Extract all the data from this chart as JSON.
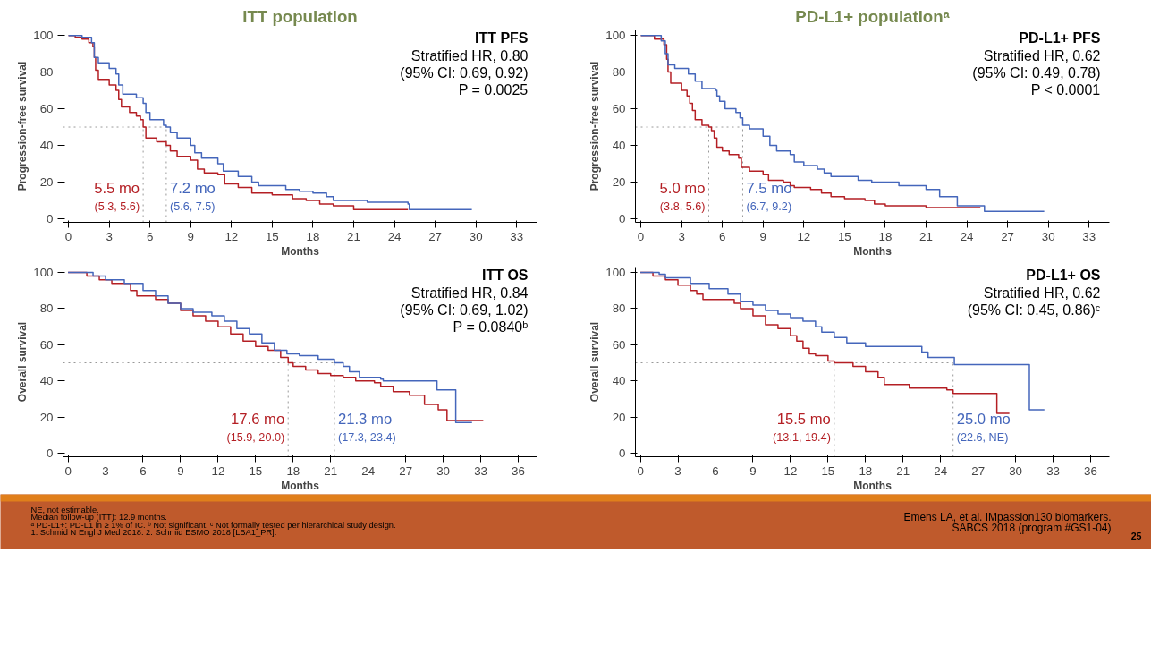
{
  "chart_data": [
    {
      "type": "step",
      "title": "ITT population",
      "subtitle": "ITT PFS",
      "xlabel": "Months",
      "ylabel": "Progression-free survival",
      "xlim": [
        -0.4,
        34.5
      ],
      "ylim": [
        -2,
        103
      ],
      "xticks": [
        0,
        3,
        6,
        9,
        12,
        15,
        18,
        21,
        24,
        27,
        30,
        33
      ],
      "yticks": [
        0,
        20,
        40,
        60,
        80,
        100
      ],
      "series": [
        {
          "color": "#b41f24",
          "x": [
            0,
            0.5,
            1,
            1.5,
            1.8,
            1.9,
            2,
            2.2,
            3,
            3.5,
            3.7,
            3.9,
            4.5,
            5,
            5.3,
            5.5,
            5.7,
            6.5,
            7.2,
            7.5,
            8,
            9,
            9.5,
            10,
            11,
            11.5,
            12.5,
            13.5,
            15,
            16.5,
            17.5,
            18.5,
            19.5,
            21,
            25
          ],
          "values": [
            100,
            99,
            98,
            96,
            94,
            88,
            81,
            76,
            73,
            70,
            65,
            61,
            58,
            56,
            54,
            50,
            44,
            42,
            40,
            37,
            34,
            32,
            27,
            25,
            24,
            19,
            17,
            14,
            13,
            11,
            10,
            8,
            7,
            5,
            5
          ]
        },
        {
          "color": "#4466bb",
          "x": [
            0,
            1,
            1.7,
            1.9,
            2.2,
            3,
            3.5,
            3.7,
            4,
            5,
            5.5,
            5.7,
            6,
            7,
            7.2,
            7.5,
            8,
            9,
            9.3,
            9.8,
            11,
            11.4,
            12.5,
            13.5,
            14,
            16,
            17,
            18,
            19,
            19.5,
            21,
            22,
            25,
            25.1,
            29.7
          ],
          "values": [
            100,
            99,
            96,
            88,
            85,
            82,
            79,
            73,
            68,
            66,
            63,
            58,
            54,
            51,
            50,
            47,
            44,
            40,
            36,
            33,
            30,
            26,
            23,
            20,
            18,
            16,
            15,
            14,
            12,
            10,
            10,
            9,
            8,
            5,
            5
          ]
        }
      ],
      "ref_lines": [
        {
          "axis": "y",
          "value": 50,
          "line_style": "dotted"
        },
        {
          "axis": "x",
          "value": 5.5,
          "line_style": "dotted"
        },
        {
          "axis": "x",
          "value": 7.2,
          "line_style": "dotted"
        }
      ],
      "annotations": [
        "Stratified HR, 0.80",
        "(95% CI: 0.69, 0.92)",
        "P = 0.0025",
        {
          "text": "5.5 mo",
          "x": 5.5,
          "y": 12
        },
        {
          "text": "(5.3, 5.6)",
          "x": 5.5,
          "y": 3
        },
        {
          "text": "7.2 mo",
          "x": 7.2,
          "y": 12
        },
        {
          "text": "(5.6, 7.5)",
          "x": 7.2,
          "y": 3
        }
      ]
    },
    {
      "type": "step",
      "title": "PD-L1+ populationᵃ",
      "subtitle": "PD-L1+ PFS",
      "xlabel": "Months",
      "ylabel": "Progression-free survival",
      "xlim": [
        -0.4,
        34.5
      ],
      "ylim": [
        -2,
        103
      ],
      "xticks": [
        0,
        3,
        6,
        9,
        12,
        15,
        18,
        21,
        24,
        27,
        30,
        33
      ],
      "yticks": [
        0,
        20,
        40,
        60,
        80,
        100
      ],
      "series": [
        {
          "color": "#b41f24",
          "x": [
            0,
            1,
            1.7,
            1.9,
            2,
            2.2,
            3,
            3.4,
            3.6,
            3.8,
            4,
            4.5,
            5,
            5.2,
            5.4,
            5.6,
            6,
            6.5,
            7.2,
            7.4,
            8,
            9,
            9.4,
            10.5,
            11,
            11.3,
            12.5,
            13.3,
            14,
            15,
            16.5,
            17.2,
            18,
            21,
            25
          ],
          "values": [
            100,
            98,
            95,
            87,
            80,
            74,
            70,
            67,
            63,
            59,
            54,
            51,
            50,
            48,
            44,
            39,
            37,
            35,
            33,
            28,
            26,
            24,
            21,
            20,
            18,
            17,
            16,
            14,
            12,
            11,
            10,
            8,
            7,
            6,
            6
          ]
        },
        {
          "color": "#4466bb",
          "x": [
            0,
            1.5,
            1.8,
            2,
            2.5,
            3.5,
            4,
            4.5,
            5.5,
            5.6,
            5.8,
            6.2,
            7,
            7.3,
            7.5,
            8,
            9,
            9.5,
            10,
            11,
            11.3,
            12,
            13,
            13.5,
            14,
            16,
            17,
            19,
            21,
            22,
            23.3,
            25.3,
            29.7
          ],
          "values": [
            100,
            97,
            90,
            84,
            82,
            79,
            75,
            71,
            70,
            67,
            64,
            60,
            58,
            55,
            51,
            49,
            45,
            40,
            37,
            35,
            31,
            29,
            27,
            25,
            23,
            21,
            20,
            18,
            16,
            12,
            7,
            4,
            4
          ]
        }
      ],
      "ref_lines": [
        {
          "axis": "y",
          "value": 50,
          "line_style": "dotted"
        },
        {
          "axis": "x",
          "value": 5.0,
          "line_style": "dotted"
        },
        {
          "axis": "x",
          "value": 7.5,
          "line_style": "dotted"
        }
      ],
      "annotations": [
        "Stratified HR, 0.62",
        "(95% CI: 0.49, 0.78)",
        "P < 0.0001",
        {
          "text": "5.0 mo",
          "x": 5.0,
          "y": 12
        },
        {
          "text": "(3.8, 5.6)",
          "x": 5.0,
          "y": 3
        },
        {
          "text": "7.5 mo",
          "x": 7.5,
          "y": 12
        },
        {
          "text": "(6.7, 9.2)",
          "x": 7.5,
          "y": 3
        }
      ]
    },
    {
      "type": "step",
      "subtitle": "ITT OS",
      "xlabel": "Months",
      "ylabel": "Overall survival",
      "xlim": [
        -0.4,
        37.5
      ],
      "ylim": [
        -2,
        103
      ],
      "xticks": [
        0,
        3,
        6,
        9,
        12,
        15,
        18,
        21,
        24,
        27,
        30,
        33,
        36
      ],
      "yticks": [
        0,
        20,
        40,
        60,
        80,
        100
      ],
      "series": [
        {
          "color": "#b41f24",
          "x": [
            0,
            1.5,
            2.5,
            3.5,
            5,
            5.5,
            7,
            8,
            9,
            10,
            11,
            12,
            13,
            14,
            15,
            16,
            17,
            17.6,
            18,
            19,
            20,
            21,
            22,
            23,
            24.5,
            25,
            26,
            27.3,
            28.5,
            29.6,
            30.3,
            33.2
          ],
          "values": [
            100,
            98,
            96,
            94,
            90,
            87,
            85,
            83,
            79,
            76,
            73,
            70,
            66,
            62,
            59,
            57,
            53,
            50,
            48,
            46,
            44,
            43,
            42,
            40,
            39,
            37,
            34,
            32,
            27,
            24,
            18,
            18
          ]
        },
        {
          "color": "#4466bb",
          "x": [
            0,
            2,
            3,
            4.5,
            6,
            7,
            8,
            9,
            10,
            11.5,
            12.5,
            13.5,
            14.5,
            15.5,
            16.5,
            17.5,
            18.5,
            20,
            21.3,
            22,
            22.5,
            23.3,
            25,
            25.2,
            29.5,
            31,
            32.3
          ],
          "values": [
            100,
            98,
            96,
            94,
            90,
            87,
            83,
            80,
            78,
            76,
            73,
            69,
            66,
            61,
            57,
            55,
            54,
            52,
            50,
            48,
            45,
            42,
            41,
            40,
            35,
            17,
            17
          ]
        }
      ],
      "ref_lines": [
        {
          "axis": "y",
          "value": 50,
          "line_style": "dotted"
        },
        {
          "axis": "x",
          "value": 17.6,
          "line_style": "dotted"
        },
        {
          "axis": "x",
          "value": 21.3,
          "line_style": "dotted"
        }
      ],
      "annotations": [
        "Stratified HR, 0.84",
        "(95% CI: 0.69, 1.02)",
        "P = 0.0840ᵇ",
        {
          "text": "17.6 mo",
          "x": 17.6,
          "y": 14
        },
        {
          "text": "(15.9, 20.0)",
          "x": 17.6,
          "y": 5
        },
        {
          "text": "21.3 mo",
          "x": 21.3,
          "y": 14
        },
        {
          "text": "(17.3, 23.4)",
          "x": 21.3,
          "y": 5
        }
      ]
    },
    {
      "type": "step",
      "subtitle": "PD-L1+ OS",
      "xlabel": "Months",
      "ylabel": "Overall survival",
      "xlim": [
        -0.4,
        37.5
      ],
      "ylim": [
        -2,
        103
      ],
      "xticks": [
        0,
        3,
        6,
        9,
        12,
        15,
        18,
        21,
        24,
        27,
        30,
        33,
        36
      ],
      "yticks": [
        0,
        20,
        40,
        60,
        80,
        100
      ],
      "series": [
        {
          "color": "#b41f24",
          "x": [
            0,
            1,
            2,
            3,
            4,
            4.5,
            5,
            7.5,
            8,
            9,
            10,
            11,
            12,
            12.5,
            13,
            13.5,
            14,
            15,
            15.5,
            17,
            18,
            19,
            19.5,
            21.5,
            24.5,
            25,
            28.5,
            29.5
          ],
          "values": [
            100,
            98,
            96,
            93,
            90,
            88,
            85,
            83,
            80,
            76,
            71,
            69,
            65,
            62,
            58,
            55,
            54,
            51,
            50,
            48,
            45,
            42,
            38,
            36,
            35,
            33,
            22,
            22
          ]
        },
        {
          "color": "#4466bb",
          "x": [
            0,
            1.5,
            2,
            4,
            5.5,
            7,
            8,
            9,
            10,
            11,
            12,
            13,
            14,
            14.5,
            15.5,
            16.5,
            18,
            22.5,
            23,
            25.1,
            31.1,
            32.3
          ],
          "values": [
            100,
            99,
            97,
            94,
            91,
            88,
            84,
            82,
            79,
            77,
            75,
            73,
            70,
            67,
            64,
            61,
            59,
            56,
            53,
            49,
            24,
            24
          ]
        }
      ],
      "ref_lines": [
        {
          "axis": "y",
          "value": 50,
          "line_style": "dotted"
        },
        {
          "axis": "x",
          "value": 15.5,
          "line_style": "dotted"
        },
        {
          "axis": "x",
          "value": 25.0,
          "line_style": "dotted"
        }
      ],
      "annotations": [
        "Stratified HR, 0.62",
        "(95% CI: 0.45, 0.86)ᶜ",
        {
          "text": "15.5 mo",
          "x": 15.5,
          "y": 14
        },
        {
          "text": "(13.1, 19.4)",
          "x": 15.5,
          "y": 5
        },
        {
          "text": "25.0 mo",
          "x": 25.0,
          "y": 14
        },
        {
          "text": "(22.6, NE)",
          "x": 25.0,
          "y": 5
        }
      ]
    },
    {
      "type": "other",
      "annotations": [
        "NE, not estimable.",
        "Median follow-up (ITT): 12.9 months.",
        "ᵃ PD-L1+: PD-L1 in ≥ 1% of IC. ᵇ Not significant. ᶜ Not formally tested per hierarchical study design.",
        "1. Schmid N Engl J Med 2018. 2. Schmid ESMO 2018 [LBA1_PR].",
        "Emens LA, et al. IMpassion130 biomarkers.",
        "SABCS 2018 (program #GS1-04)",
        "25"
      ]
    }
  ]
}
